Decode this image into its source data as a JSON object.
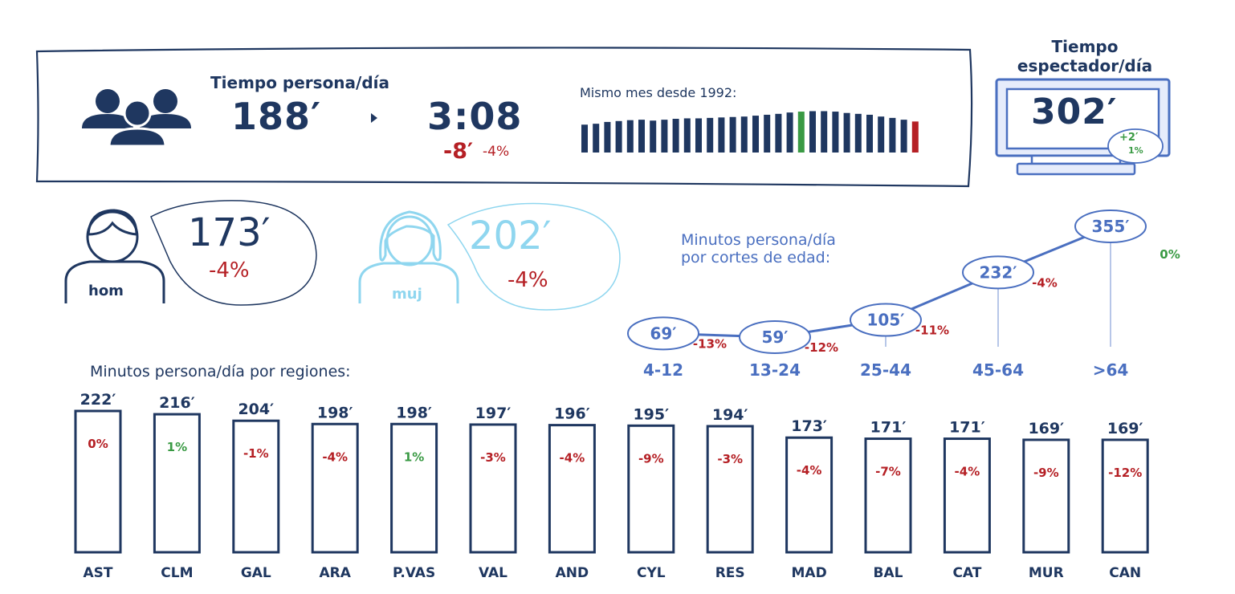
{
  "colors": {
    "navy": "#1f3760",
    "red": "#b52025",
    "green": "#3a9a44",
    "blue": "#4a6fc0",
    "light_blue": "#8fd6ef",
    "monitor_blue": "#e6ecfb"
  },
  "header": {
    "title": "Tiempo persona/día",
    "previous": "188′",
    "current": "3:08",
    "change_min": "-8′",
    "change_pct": "-4%",
    "history_label": "Mismo mes desde 1992:"
  },
  "spectator": {
    "title_line1": "Tiempo",
    "title_line2": "espectador/día",
    "value": "302′",
    "change_min": "+2′",
    "change_pct": "1%"
  },
  "gender": {
    "men": {
      "label": "hom",
      "value": "173′",
      "change": "-4%"
    },
    "women": {
      "label": "muj",
      "value": "202′",
      "change": "-4%"
    }
  },
  "icons": {
    "group": "people-group-icon",
    "arrow": "arrow-right-icon",
    "men": "man-icon",
    "women": "woman-icon",
    "monitor": "monitor-icon"
  },
  "chart_data": [
    {
      "type": "bar",
      "title": "Mismo mes desde 1992:",
      "values": [
        0.62,
        0.64,
        0.68,
        0.7,
        0.72,
        0.73,
        0.71,
        0.73,
        0.75,
        0.76,
        0.76,
        0.77,
        0.78,
        0.79,
        0.8,
        0.82,
        0.84,
        0.86,
        0.89,
        0.91,
        0.92,
        0.92,
        0.91,
        0.88,
        0.86,
        0.84,
        0.8,
        0.77,
        0.73,
        0.69
      ],
      "highlight_colors": {
        "19": "#3a9a44",
        "29": "#b52025"
      }
    },
    {
      "type": "line",
      "title": "Minutos persona/día\npor cortes de edad:",
      "categories": [
        "4-12",
        "13-24",
        "25-44",
        "45-64",
        ">64"
      ],
      "values": [
        69,
        59,
        105,
        232,
        355
      ],
      "value_labels": [
        "69′",
        "59′",
        "105′",
        "232′",
        "355′"
      ],
      "changes": [
        "-13%",
        "-12%",
        "-11%",
        "-4%",
        "0%"
      ]
    },
    {
      "type": "bar",
      "title": "Minutos persona/día por regiones:",
      "categories": [
        "AST",
        "CLM",
        "GAL",
        "ARA",
        "P.VAS",
        "VAL",
        "AND",
        "CYL",
        "RES",
        "MAD",
        "BAL",
        "CAT",
        "MUR",
        "CAN"
      ],
      "values": [
        222,
        216,
        204,
        198,
        198,
        197,
        196,
        195,
        194,
        173,
        171,
        171,
        169,
        169
      ],
      "value_labels": [
        "222′",
        "216′",
        "204′",
        "198′",
        "198′",
        "197′",
        "196′",
        "195′",
        "194′",
        "173′",
        "171′",
        "171′",
        "169′",
        "169′"
      ],
      "changes": [
        "0%",
        "1%",
        "-1%",
        "-4%",
        "1%",
        "-3%",
        "-4%",
        "-9%",
        "-3%",
        "-4%",
        "-7%",
        "-4%",
        "-9%",
        "-12%"
      ]
    }
  ]
}
